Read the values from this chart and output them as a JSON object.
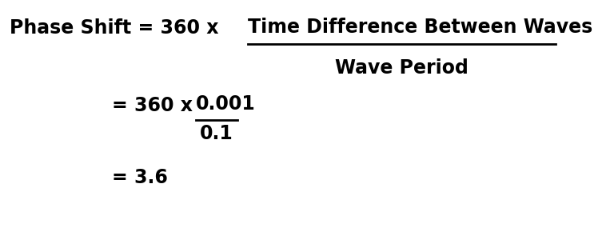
{
  "bg_color": "#ffffff",
  "line1_left": "Phase Shift = 360 x ",
  "line1_numerator": "Time Difference Between Waves",
  "line1_denominator": "Wave Period",
  "line2_left": "= 360 x ",
  "line2_numerator": "0.001",
  "line2_denominator": "0.1",
  "line3": "= 3.6",
  "font_size_main": 17,
  "text_color": "#000000",
  "font_weight": "bold",
  "fig_width": 7.68,
  "fig_height": 2.9,
  "dpi": 100
}
